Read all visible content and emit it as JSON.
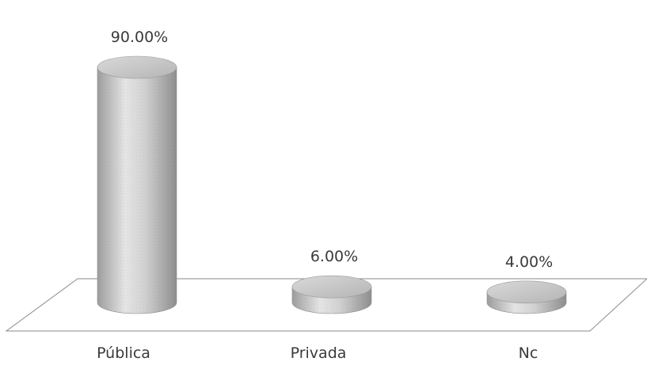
{
  "chart_data": {
    "type": "bar",
    "style": "3d-cylinder",
    "categories": [
      "Pública",
      "Privada",
      "Nc"
    ],
    "values": [
      90.0,
      6.0,
      4.0
    ],
    "data_labels": [
      "90.00%",
      "6.00%",
      "4.00%"
    ],
    "title": "",
    "xlabel": "",
    "ylabel": "",
    "ylim": [
      0,
      100
    ],
    "legend": "none",
    "grid": false,
    "colors": {
      "bar_fill": "#c8c8c8",
      "bar_dark": "#9a9a9a",
      "bar_light": "#ececec",
      "floor_stroke": "#7a7a7a",
      "text": "#3a3a3a"
    }
  }
}
